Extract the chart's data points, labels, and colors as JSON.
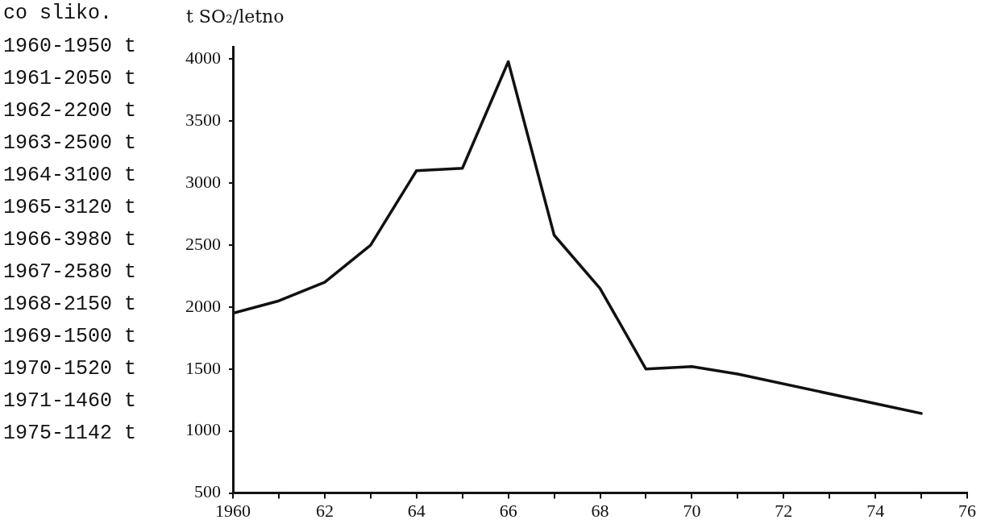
{
  "chart_data": {
    "type": "line",
    "ylabel": "t SO₂/letno",
    "annotations": [
      "co sliko.",
      "1960-1950 t",
      "1961-2050 t",
      "1962-2200 t",
      "1963-2500 t",
      "1964-3100 t",
      "1965-3120 t",
      "1966-3980 t",
      "1967-2580 t",
      "1968-2150 t",
      "1969-1500 t",
      "1970-1520 t",
      "1971-1460 t",
      "1975-1142 t"
    ],
    "x": [
      1960,
      1961,
      1962,
      1963,
      1964,
      1965,
      1966,
      1967,
      1968,
      1969,
      1970,
      1971,
      1975
    ],
    "series": [
      {
        "color": "#111111",
        "values": [
          1950,
          2050,
          2200,
          2500,
          3100,
          3120,
          3980,
          2580,
          2150,
          1500,
          1520,
          1460,
          1142
        ]
      }
    ],
    "xlim": [
      1960,
      1976
    ],
    "xticks": [
      {
        "value": 1960,
        "label": "1960"
      },
      {
        "value": 1961,
        "label": null
      },
      {
        "value": 1962,
        "label": "62"
      },
      {
        "value": 1963,
        "label": null
      },
      {
        "value": 1964,
        "label": "64"
      },
      {
        "value": 1965,
        "label": null
      },
      {
        "value": 1966,
        "label": "66"
      },
      {
        "value": 1967,
        "label": null
      },
      {
        "value": 1968,
        "label": "68"
      },
      {
        "value": 1969,
        "label": null
      },
      {
        "value": 1970,
        "label": "70"
      },
      {
        "value": 1971,
        "label": null
      },
      {
        "value": 1972,
        "label": "72"
      },
      {
        "value": 1973,
        "label": null
      },
      {
        "value": 1974,
        "label": "74"
      },
      {
        "value": 1975,
        "label": null
      },
      {
        "value": 1976,
        "label": "76"
      }
    ],
    "ylim": [
      500,
      4100
    ],
    "yticks": [
      500,
      1000,
      1500,
      2000,
      2500,
      3000,
      3500,
      4000
    ],
    "grid": false,
    "legend": false,
    "marker": "none",
    "line_style": "solid"
  }
}
